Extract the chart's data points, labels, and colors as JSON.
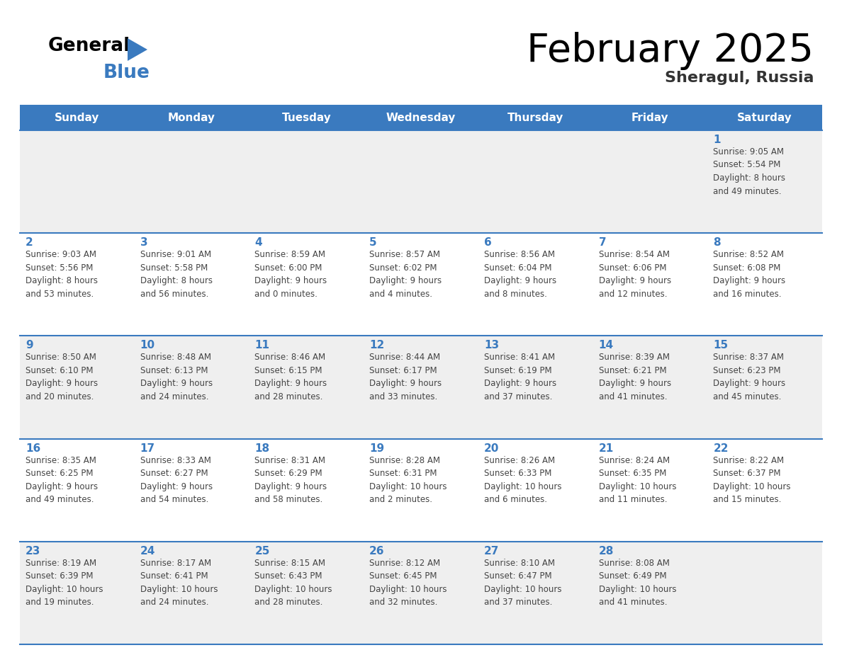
{
  "title": "February 2025",
  "subtitle": "Sheragul, Russia",
  "header_color": "#3a7abf",
  "header_text_color": "#ffffff",
  "cell_bg_light": "#efefef",
  "cell_bg_white": "#ffffff",
  "day_number_color": "#3a7abf",
  "text_color": "#444444",
  "line_color": "#3a7abf",
  "days_of_week": [
    "Sunday",
    "Monday",
    "Tuesday",
    "Wednesday",
    "Thursday",
    "Friday",
    "Saturday"
  ],
  "weeks": [
    [
      {
        "day": null,
        "info": null
      },
      {
        "day": null,
        "info": null
      },
      {
        "day": null,
        "info": null
      },
      {
        "day": null,
        "info": null
      },
      {
        "day": null,
        "info": null
      },
      {
        "day": null,
        "info": null
      },
      {
        "day": 1,
        "info": "Sunrise: 9:05 AM\nSunset: 5:54 PM\nDaylight: 8 hours\nand 49 minutes."
      }
    ],
    [
      {
        "day": 2,
        "info": "Sunrise: 9:03 AM\nSunset: 5:56 PM\nDaylight: 8 hours\nand 53 minutes."
      },
      {
        "day": 3,
        "info": "Sunrise: 9:01 AM\nSunset: 5:58 PM\nDaylight: 8 hours\nand 56 minutes."
      },
      {
        "day": 4,
        "info": "Sunrise: 8:59 AM\nSunset: 6:00 PM\nDaylight: 9 hours\nand 0 minutes."
      },
      {
        "day": 5,
        "info": "Sunrise: 8:57 AM\nSunset: 6:02 PM\nDaylight: 9 hours\nand 4 minutes."
      },
      {
        "day": 6,
        "info": "Sunrise: 8:56 AM\nSunset: 6:04 PM\nDaylight: 9 hours\nand 8 minutes."
      },
      {
        "day": 7,
        "info": "Sunrise: 8:54 AM\nSunset: 6:06 PM\nDaylight: 9 hours\nand 12 minutes."
      },
      {
        "day": 8,
        "info": "Sunrise: 8:52 AM\nSunset: 6:08 PM\nDaylight: 9 hours\nand 16 minutes."
      }
    ],
    [
      {
        "day": 9,
        "info": "Sunrise: 8:50 AM\nSunset: 6:10 PM\nDaylight: 9 hours\nand 20 minutes."
      },
      {
        "day": 10,
        "info": "Sunrise: 8:48 AM\nSunset: 6:13 PM\nDaylight: 9 hours\nand 24 minutes."
      },
      {
        "day": 11,
        "info": "Sunrise: 8:46 AM\nSunset: 6:15 PM\nDaylight: 9 hours\nand 28 minutes."
      },
      {
        "day": 12,
        "info": "Sunrise: 8:44 AM\nSunset: 6:17 PM\nDaylight: 9 hours\nand 33 minutes."
      },
      {
        "day": 13,
        "info": "Sunrise: 8:41 AM\nSunset: 6:19 PM\nDaylight: 9 hours\nand 37 minutes."
      },
      {
        "day": 14,
        "info": "Sunrise: 8:39 AM\nSunset: 6:21 PM\nDaylight: 9 hours\nand 41 minutes."
      },
      {
        "day": 15,
        "info": "Sunrise: 8:37 AM\nSunset: 6:23 PM\nDaylight: 9 hours\nand 45 minutes."
      }
    ],
    [
      {
        "day": 16,
        "info": "Sunrise: 8:35 AM\nSunset: 6:25 PM\nDaylight: 9 hours\nand 49 minutes."
      },
      {
        "day": 17,
        "info": "Sunrise: 8:33 AM\nSunset: 6:27 PM\nDaylight: 9 hours\nand 54 minutes."
      },
      {
        "day": 18,
        "info": "Sunrise: 8:31 AM\nSunset: 6:29 PM\nDaylight: 9 hours\nand 58 minutes."
      },
      {
        "day": 19,
        "info": "Sunrise: 8:28 AM\nSunset: 6:31 PM\nDaylight: 10 hours\nand 2 minutes."
      },
      {
        "day": 20,
        "info": "Sunrise: 8:26 AM\nSunset: 6:33 PM\nDaylight: 10 hours\nand 6 minutes."
      },
      {
        "day": 21,
        "info": "Sunrise: 8:24 AM\nSunset: 6:35 PM\nDaylight: 10 hours\nand 11 minutes."
      },
      {
        "day": 22,
        "info": "Sunrise: 8:22 AM\nSunset: 6:37 PM\nDaylight: 10 hours\nand 15 minutes."
      }
    ],
    [
      {
        "day": 23,
        "info": "Sunrise: 8:19 AM\nSunset: 6:39 PM\nDaylight: 10 hours\nand 19 minutes."
      },
      {
        "day": 24,
        "info": "Sunrise: 8:17 AM\nSunset: 6:41 PM\nDaylight: 10 hours\nand 24 minutes."
      },
      {
        "day": 25,
        "info": "Sunrise: 8:15 AM\nSunset: 6:43 PM\nDaylight: 10 hours\nand 28 minutes."
      },
      {
        "day": 26,
        "info": "Sunrise: 8:12 AM\nSunset: 6:45 PM\nDaylight: 10 hours\nand 32 minutes."
      },
      {
        "day": 27,
        "info": "Sunrise: 8:10 AM\nSunset: 6:47 PM\nDaylight: 10 hours\nand 37 minutes."
      },
      {
        "day": 28,
        "info": "Sunrise: 8:08 AM\nSunset: 6:49 PM\nDaylight: 10 hours\nand 41 minutes."
      },
      {
        "day": null,
        "info": null
      }
    ]
  ]
}
